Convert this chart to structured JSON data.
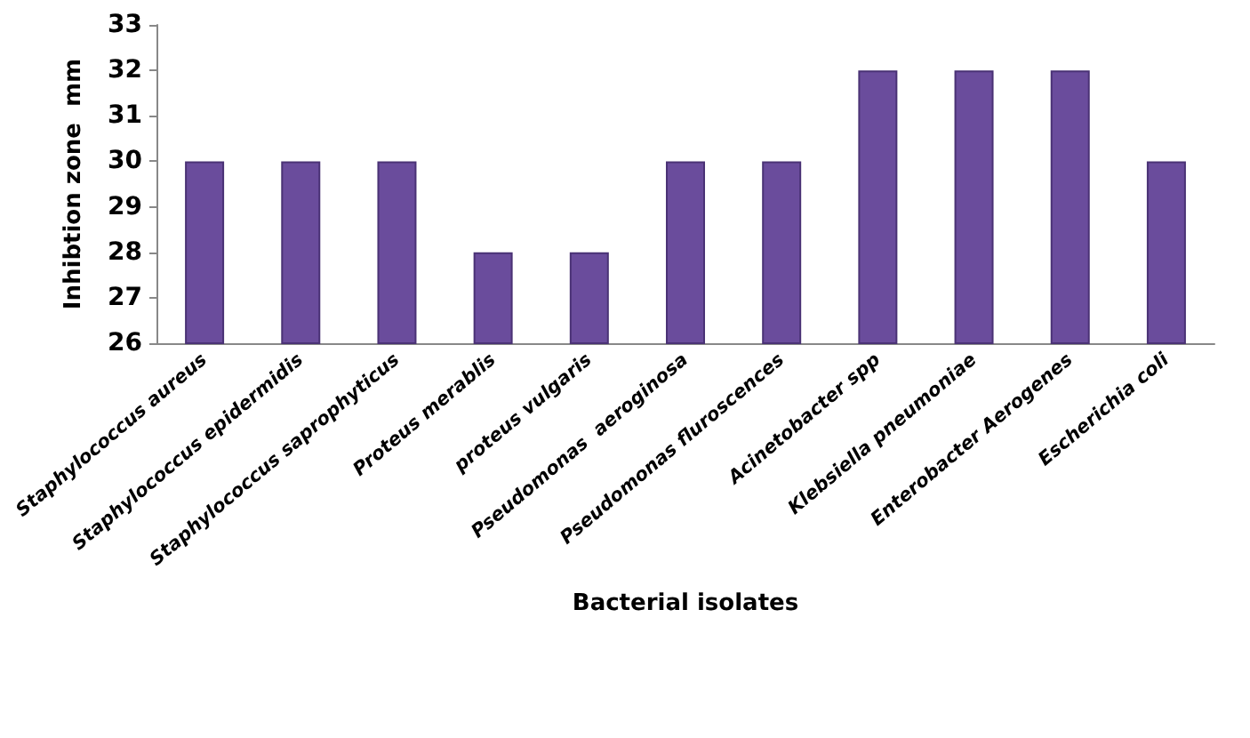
{
  "chart_data": {
    "type": "bar",
    "xlabel": "Bacterial isolates",
    "ylabel": "Inhibtion zone  mm",
    "categories": [
      "Staphylococcus aureus",
      "Staphylococcus epidermidis",
      "Staphylococcus saprophyticus",
      "Proteus merablis",
      "proteus vulgaris",
      "Pseudomonas  aeroginosa",
      "Pseudomonas fluroscences",
      "Acinetobacter spp",
      "Klebsiella pneumoniae",
      "Enterobacter Aerogenes",
      "Escherichia coli"
    ],
    "values": [
      30,
      30,
      30,
      28,
      28,
      30,
      30,
      32,
      32,
      32,
      30
    ],
    "color": "#6a4c9c",
    "ylim": [
      26,
      33
    ],
    "yticks": [
      26,
      27,
      28,
      29,
      30,
      31,
      32,
      33
    ],
    "grid": false
  }
}
